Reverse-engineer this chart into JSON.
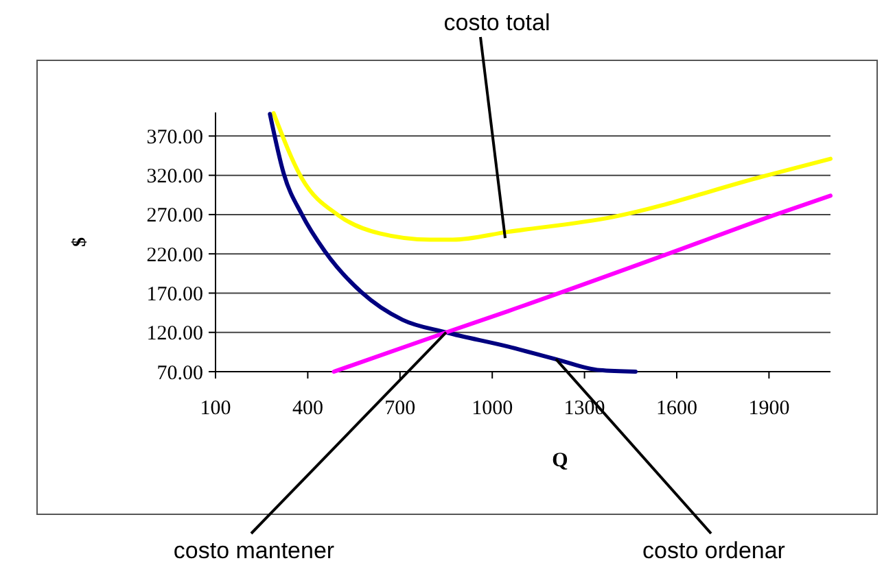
{
  "chart_data": {
    "type": "line",
    "xlabel": "Q",
    "ylabel": "$",
    "xlim": [
      100,
      2100
    ],
    "xticks": [
      100,
      400,
      700,
      1000,
      1300,
      1600,
      1900
    ],
    "ylim": [
      70,
      400
    ],
    "yticks": [
      {
        "value": 70,
        "label": "70.00"
      },
      {
        "value": 120,
        "label": "120.00"
      },
      {
        "value": 170,
        "label": "170.00"
      },
      {
        "value": 220,
        "label": "220.00"
      },
      {
        "value": 270,
        "label": "270.00"
      },
      {
        "value": 320,
        "label": "320.00"
      },
      {
        "value": 370,
        "label": "370.00"
      }
    ],
    "grid": "y",
    "marker": "none",
    "line_style": "solid",
    "series": [
      {
        "color": "#ffff00",
        "x": [
          289,
          381,
          500,
          634,
          798,
          872,
          1051,
          1393,
          1884,
          2100
        ],
        "values": [
          399,
          316,
          269,
          246,
          238,
          238,
          248,
          267,
          319,
          341
        ]
      },
      {
        "color": "#000080",
        "x": [
          277,
          322,
          381,
          456,
          575,
          708,
          850,
          1051,
          1215,
          1349,
          1466
        ],
        "values": [
          398,
          322,
          270,
          223,
          171,
          136,
          120,
          102,
          85,
          72,
          70
        ]
      },
      {
        "color": "#ff00ff",
        "x": [
          485,
          850,
          1051,
          1572,
          1914,
          2100
        ],
        "values": [
          70,
          120,
          147,
          220,
          269,
          294
        ]
      }
    ],
    "annotations": [
      {
        "text": "costo total",
        "x": 1042,
        "y": 240
      },
      {
        "text": "costo mantener",
        "x": 850,
        "y": 120
      },
      {
        "text": "costo ordenar",
        "x": 1207,
        "y": 86
      }
    ]
  }
}
